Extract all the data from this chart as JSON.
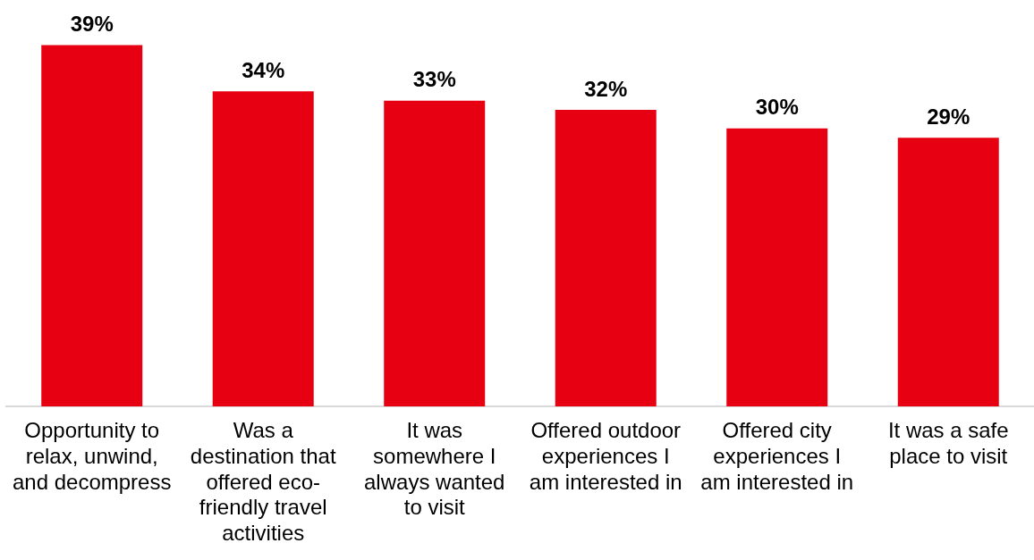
{
  "chart_data": {
    "type": "bar",
    "categories": [
      "Opportunity to relax, unwind, and decompress",
      "Was a destination that offered eco-friendly travel activities",
      "It was somewhere I always wanted to visit",
      "Offered outdoor experiences I am interested in",
      "Offered city experiences I am interested in",
      "It was a safe place to visit"
    ],
    "values": [
      39,
      34,
      33,
      32,
      30,
      29
    ],
    "value_labels": [
      "39%",
      "34%",
      "33%",
      "32%",
      "30%",
      "29%"
    ],
    "color": "#e60012",
    "grid": false,
    "legend": false
  }
}
